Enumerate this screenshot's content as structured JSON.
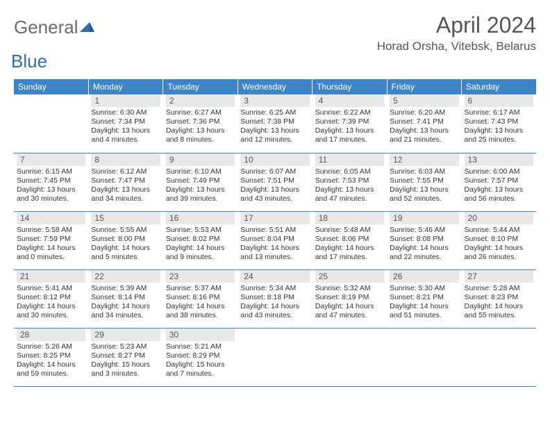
{
  "logo": {
    "general": "General",
    "blue": "Blue"
  },
  "title": {
    "month": "April 2024",
    "location": "Horad Orsha, Vitebsk, Belarus"
  },
  "day_headers": [
    "Sunday",
    "Monday",
    "Tuesday",
    "Wednesday",
    "Thursday",
    "Friday",
    "Saturday"
  ],
  "colors": {
    "header_bg": "#3d85c6",
    "header_fg": "#ffffff",
    "daynum_bg": "#e8e8e8",
    "text": "#333333",
    "title_fg": "#555555",
    "logo_general": "#6b6b6b",
    "logo_blue": "#2f6fa8",
    "rule": "#3d85c6"
  },
  "weeks": [
    [
      null,
      {
        "n": "1",
        "sr": "Sunrise: 6:30 AM",
        "ss": "Sunset: 7:34 PM",
        "d1": "Daylight: 13 hours",
        "d2": "and 4 minutes."
      },
      {
        "n": "2",
        "sr": "Sunrise: 6:27 AM",
        "ss": "Sunset: 7:36 PM",
        "d1": "Daylight: 13 hours",
        "d2": "and 8 minutes."
      },
      {
        "n": "3",
        "sr": "Sunrise: 6:25 AM",
        "ss": "Sunset: 7:38 PM",
        "d1": "Daylight: 13 hours",
        "d2": "and 12 minutes."
      },
      {
        "n": "4",
        "sr": "Sunrise: 6:22 AM",
        "ss": "Sunset: 7:39 PM",
        "d1": "Daylight: 13 hours",
        "d2": "and 17 minutes."
      },
      {
        "n": "5",
        "sr": "Sunrise: 6:20 AM",
        "ss": "Sunset: 7:41 PM",
        "d1": "Daylight: 13 hours",
        "d2": "and 21 minutes."
      },
      {
        "n": "6",
        "sr": "Sunrise: 6:17 AM",
        "ss": "Sunset: 7:43 PM",
        "d1": "Daylight: 13 hours",
        "d2": "and 25 minutes."
      }
    ],
    [
      {
        "n": "7",
        "sr": "Sunrise: 6:15 AM",
        "ss": "Sunset: 7:45 PM",
        "d1": "Daylight: 13 hours",
        "d2": "and 30 minutes."
      },
      {
        "n": "8",
        "sr": "Sunrise: 6:12 AM",
        "ss": "Sunset: 7:47 PM",
        "d1": "Daylight: 13 hours",
        "d2": "and 34 minutes."
      },
      {
        "n": "9",
        "sr": "Sunrise: 6:10 AM",
        "ss": "Sunset: 7:49 PM",
        "d1": "Daylight: 13 hours",
        "d2": "and 39 minutes."
      },
      {
        "n": "10",
        "sr": "Sunrise: 6:07 AM",
        "ss": "Sunset: 7:51 PM",
        "d1": "Daylight: 13 hours",
        "d2": "and 43 minutes."
      },
      {
        "n": "11",
        "sr": "Sunrise: 6:05 AM",
        "ss": "Sunset: 7:53 PM",
        "d1": "Daylight: 13 hours",
        "d2": "and 47 minutes."
      },
      {
        "n": "12",
        "sr": "Sunrise: 6:03 AM",
        "ss": "Sunset: 7:55 PM",
        "d1": "Daylight: 13 hours",
        "d2": "and 52 minutes."
      },
      {
        "n": "13",
        "sr": "Sunrise: 6:00 AM",
        "ss": "Sunset: 7:57 PM",
        "d1": "Daylight: 13 hours",
        "d2": "and 56 minutes."
      }
    ],
    [
      {
        "n": "14",
        "sr": "Sunrise: 5:58 AM",
        "ss": "Sunset: 7:59 PM",
        "d1": "Daylight: 14 hours",
        "d2": "and 0 minutes."
      },
      {
        "n": "15",
        "sr": "Sunrise: 5:55 AM",
        "ss": "Sunset: 8:00 PM",
        "d1": "Daylight: 14 hours",
        "d2": "and 5 minutes."
      },
      {
        "n": "16",
        "sr": "Sunrise: 5:53 AM",
        "ss": "Sunset: 8:02 PM",
        "d1": "Daylight: 14 hours",
        "d2": "and 9 minutes."
      },
      {
        "n": "17",
        "sr": "Sunrise: 5:51 AM",
        "ss": "Sunset: 8:04 PM",
        "d1": "Daylight: 14 hours",
        "d2": "and 13 minutes."
      },
      {
        "n": "18",
        "sr": "Sunrise: 5:48 AM",
        "ss": "Sunset: 8:06 PM",
        "d1": "Daylight: 14 hours",
        "d2": "and 17 minutes."
      },
      {
        "n": "19",
        "sr": "Sunrise: 5:46 AM",
        "ss": "Sunset: 8:08 PM",
        "d1": "Daylight: 14 hours",
        "d2": "and 22 minutes."
      },
      {
        "n": "20",
        "sr": "Sunrise: 5:44 AM",
        "ss": "Sunset: 8:10 PM",
        "d1": "Daylight: 14 hours",
        "d2": "and 26 minutes."
      }
    ],
    [
      {
        "n": "21",
        "sr": "Sunrise: 5:41 AM",
        "ss": "Sunset: 8:12 PM",
        "d1": "Daylight: 14 hours",
        "d2": "and 30 minutes."
      },
      {
        "n": "22",
        "sr": "Sunrise: 5:39 AM",
        "ss": "Sunset: 8:14 PM",
        "d1": "Daylight: 14 hours",
        "d2": "and 34 minutes."
      },
      {
        "n": "23",
        "sr": "Sunrise: 5:37 AM",
        "ss": "Sunset: 8:16 PM",
        "d1": "Daylight: 14 hours",
        "d2": "and 38 minutes."
      },
      {
        "n": "24",
        "sr": "Sunrise: 5:34 AM",
        "ss": "Sunset: 8:18 PM",
        "d1": "Daylight: 14 hours",
        "d2": "and 43 minutes."
      },
      {
        "n": "25",
        "sr": "Sunrise: 5:32 AM",
        "ss": "Sunset: 8:19 PM",
        "d1": "Daylight: 14 hours",
        "d2": "and 47 minutes."
      },
      {
        "n": "26",
        "sr": "Sunrise: 5:30 AM",
        "ss": "Sunset: 8:21 PM",
        "d1": "Daylight: 14 hours",
        "d2": "and 51 minutes."
      },
      {
        "n": "27",
        "sr": "Sunrise: 5:28 AM",
        "ss": "Sunset: 8:23 PM",
        "d1": "Daylight: 14 hours",
        "d2": "and 55 minutes."
      }
    ],
    [
      {
        "n": "28",
        "sr": "Sunrise: 5:26 AM",
        "ss": "Sunset: 8:25 PM",
        "d1": "Daylight: 14 hours",
        "d2": "and 59 minutes."
      },
      {
        "n": "29",
        "sr": "Sunrise: 5:23 AM",
        "ss": "Sunset: 8:27 PM",
        "d1": "Daylight: 15 hours",
        "d2": "and 3 minutes."
      },
      {
        "n": "30",
        "sr": "Sunrise: 5:21 AM",
        "ss": "Sunset: 8:29 PM",
        "d1": "Daylight: 15 hours",
        "d2": "and 7 minutes."
      },
      null,
      null,
      null,
      null
    ]
  ]
}
